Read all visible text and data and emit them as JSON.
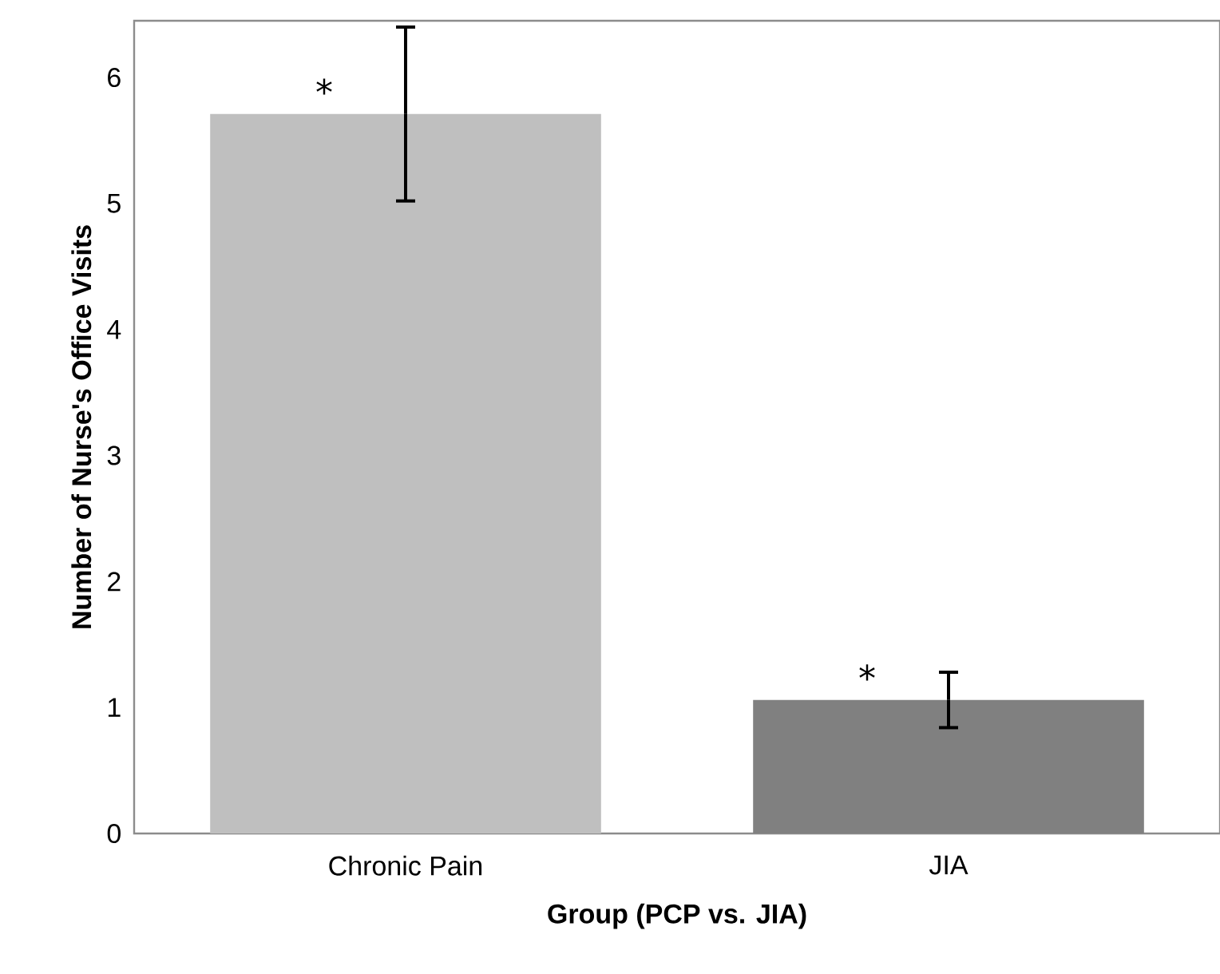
{
  "chart_data": {
    "type": "bar",
    "xlabel": "Group (PCP vs. JIA)",
    "ylabel": "Number of Nurse's Office Visits",
    "categories": [
      "Chronic Pain",
      "JIA"
    ],
    "values": [
      5.71,
      1.06
    ],
    "errors": [
      0.69,
      0.22
    ],
    "colors": [
      "#bfbfbf",
      "#808080"
    ],
    "ylim": [
      0,
      6.45
    ],
    "yticks": [
      0,
      1,
      2,
      3,
      4,
      5,
      6
    ],
    "grid": false,
    "annotations": [
      "*",
      "*"
    ]
  }
}
